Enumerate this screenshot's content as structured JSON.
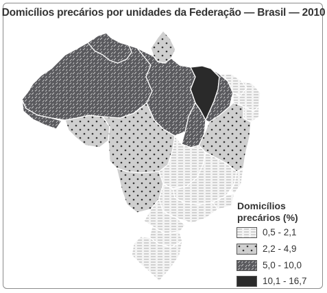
{
  "title": "Domicílios precários por unidades da Federação — Brasil — 2010",
  "legend": {
    "title_line1": "Domicílios",
    "title_line2": "precários (%)",
    "items": [
      {
        "label": "0,5 - 2,1",
        "pattern": "hlines"
      },
      {
        "label": "2,2 - 4,9",
        "pattern": "dots"
      },
      {
        "label": "5,0 - 10,0",
        "pattern": "dashes"
      },
      {
        "label": "10,1 - 16,7",
        "pattern": "solid"
      }
    ]
  },
  "colors": {
    "light": "#f2f2f2",
    "dots_bg": "#cfcfcf",
    "dashes_bg": "#5a5a5e",
    "solid": "#2a2a2a",
    "border": "#ffffff"
  }
}
